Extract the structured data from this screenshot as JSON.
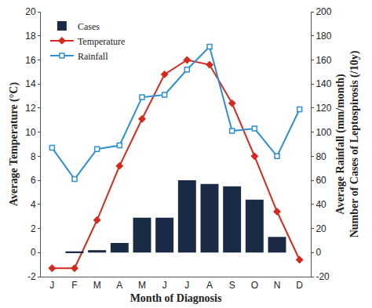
{
  "chart_data": {
    "type": "combo",
    "x_label": "Month of Diagnosis",
    "y_label": "Average Temperature (°C)",
    "y2_label": [
      "Average Rainfall (mm/month)",
      "Number of Cases of Leptospirosis (/10y)"
    ],
    "categories": [
      "J",
      "F",
      "M",
      "A",
      "M",
      "J",
      "J",
      "A",
      "S",
      "O",
      "N",
      "D"
    ],
    "series": [
      {
        "name": "Cases",
        "type": "bar",
        "axis": "y2",
        "color": "#1b2a45",
        "values": [
          0,
          1,
          2,
          8,
          29,
          29,
          60,
          57,
          55,
          44,
          13,
          0
        ]
      },
      {
        "name": "Temperature",
        "type": "line",
        "axis": "y",
        "color": "#d42a1f",
        "marker": "diamond",
        "values": [
          -1.3,
          -1.3,
          2.7,
          7.2,
          11.1,
          14.8,
          16.0,
          15.6,
          12.4,
          8.0,
          3.4,
          -0.6
        ]
      },
      {
        "name": "Rainfall",
        "type": "line",
        "axis": "y2",
        "color": "#2e8fd3",
        "marker": "square",
        "values": [
          87,
          61,
          86,
          89,
          129,
          131,
          152,
          171,
          101,
          103,
          80,
          119
        ]
      }
    ],
    "ylim": [
      -2,
      20
    ],
    "yticks": [
      -2,
      0,
      2,
      4,
      6,
      8,
      10,
      12,
      14,
      16,
      18,
      20
    ],
    "y2lim": [
      -20,
      200
    ],
    "y2ticks": [
      -20,
      0,
      20,
      40,
      60,
      80,
      100,
      120,
      140,
      160,
      180,
      200
    ],
    "legend": "upper left",
    "grid": false
  }
}
